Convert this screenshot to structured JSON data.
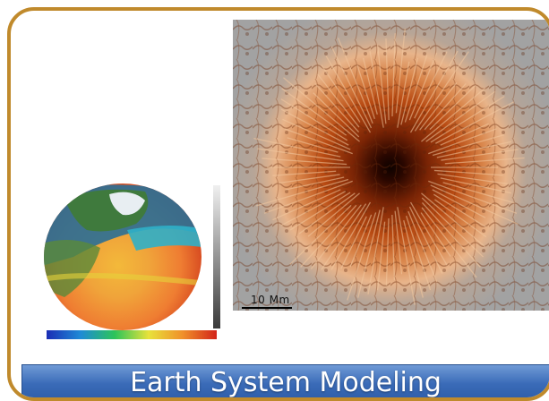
{
  "banner": {
    "title": "Earth System Modeling"
  },
  "sunspot_image": {
    "scale_label": "10 Mm"
  },
  "colors": {
    "frame_border": "#c08a2c",
    "banner_fill": "#3a6bb8",
    "sunspot_umbra": "#1a0500",
    "sunspot_penumbra": "#c4581b",
    "granulation": "#9a9a9a"
  }
}
